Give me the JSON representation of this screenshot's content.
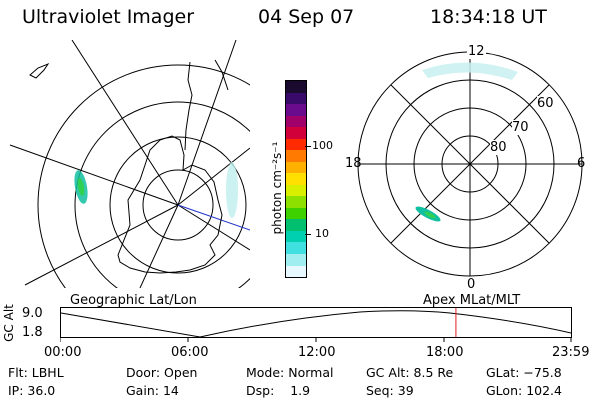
{
  "header": {
    "instrument": "Ultraviolet Imager",
    "date": "04 Sep 07",
    "time": "18:34:18 UT"
  },
  "geo_panel": {
    "label": "Geographic Lat/Lon"
  },
  "colorbar": {
    "unit_label": "photon cm⁻²s⁻¹",
    "tick_labels": [
      "100",
      "10"
    ],
    "colors": [
      "#1a0b2e",
      "#3a0a6a",
      "#6a0a8c",
      "#a0006a",
      "#d2003a",
      "#ff2a00",
      "#ff7a00",
      "#ffb000",
      "#ffe000",
      "#d8f000",
      "#8ee000",
      "#3fd000",
      "#00c070",
      "#00d0b0",
      "#40e0e0",
      "#a0eef0",
      "#e8f8ff"
    ]
  },
  "mlt_panel": {
    "label": "Apex MLat/MLT",
    "mlt_labels": {
      "top": "12",
      "left": "18",
      "right": "6",
      "bottom": "0"
    },
    "lat_labels": [
      "60",
      "70",
      "80"
    ]
  },
  "timeline": {
    "axis_title": "GC Alt",
    "y_labels": [
      "9.0",
      "1.8"
    ],
    "x_labels": [
      "00:00",
      "06:00",
      "12:00",
      "18:00",
      "23:59"
    ],
    "current_time_fraction": 0.7738
  },
  "status": {
    "row1": [
      {
        "key": "Flt:",
        "value": "LBHL"
      },
      {
        "key": "Door:",
        "value": "Open"
      },
      {
        "key": "Mode:",
        "value": "Normal"
      },
      {
        "key": "GC Alt:",
        "value": "8.5 Re"
      },
      {
        "key": "GLat:",
        "value": "−75.8"
      }
    ],
    "row2": [
      {
        "key": "IP:",
        "value": "36.0"
      },
      {
        "key": "Gain:",
        "value": "14"
      },
      {
        "key": "Dsp:",
        "value": "1.9"
      },
      {
        "key": "Seq:",
        "value": "39"
      },
      {
        "key": "GLon:",
        "value": "102.4"
      }
    ]
  }
}
